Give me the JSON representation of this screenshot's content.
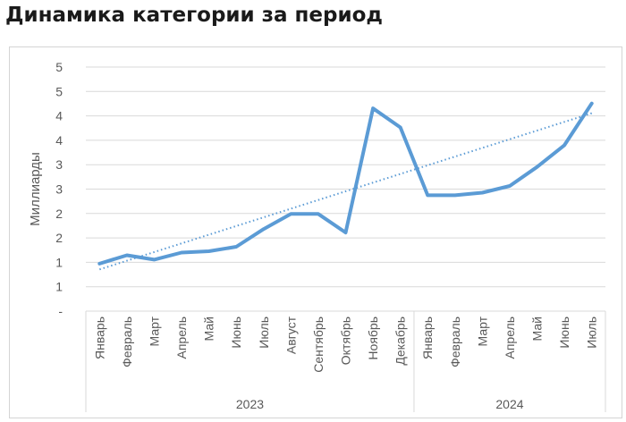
{
  "page_title": "Динамика категории за период",
  "chart_data": {
    "type": "line",
    "title": "Динамика категории за период",
    "ylabel": "Миллиарды",
    "xlabel": "",
    "y_tick_labels": [
      "-",
      "1",
      "1",
      "2",
      "2",
      "3",
      "3",
      "4",
      "4",
      "5",
      "5"
    ],
    "ylim": [
      0,
      5.5
    ],
    "grid": true,
    "legend": "none",
    "years": [
      {
        "label": "2023",
        "months": 12
      },
      {
        "label": "2024",
        "months": 7
      }
    ],
    "categories": [
      "Январь",
      "Февраль",
      "Март",
      "Апрель",
      "Май",
      "Июнь",
      "Июль",
      "Август",
      "Сентябрь",
      "Октябрь",
      "Ноябрь",
      "Декабрь",
      "Январь",
      "Февраль",
      "Март",
      "Апрель",
      "Май",
      "Июнь",
      "Июль"
    ],
    "series": [
      {
        "values": [
          1.07,
          1.26,
          1.16,
          1.32,
          1.35,
          1.45,
          1.85,
          2.19,
          2.19,
          1.77,
          4.57,
          4.14,
          2.61,
          2.61,
          2.67,
          2.82,
          3.25,
          3.74,
          4.68
        ],
        "color": "#5b9bd5"
      }
    ],
    "trendline": {
      "style": "dotted",
      "color": "#5b9bd5",
      "values": [
        0.94,
        4.46
      ]
    }
  }
}
